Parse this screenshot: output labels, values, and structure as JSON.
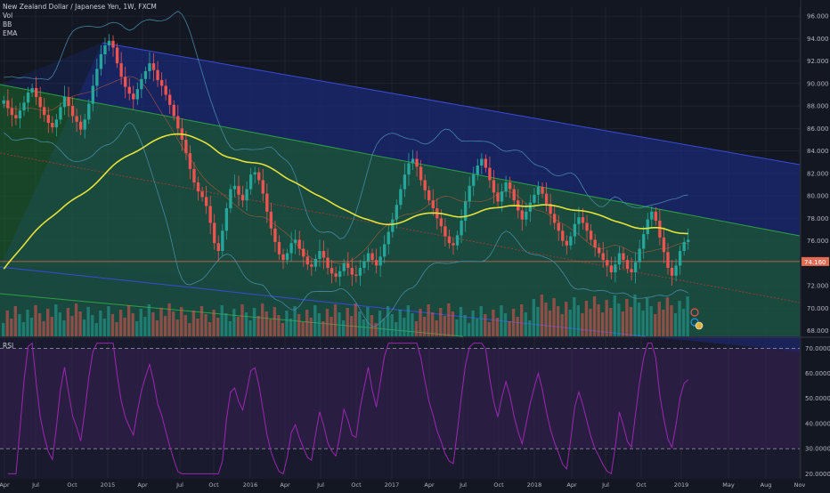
{
  "header": {
    "symbol_line": "New Zealand Dollar / Japanese Yen, 1W, FXCM",
    "indicators": [
      "Vol",
      "BB",
      "EMA"
    ]
  },
  "rsi_panel": {
    "label": "RSI"
  },
  "colors": {
    "background": "#131722",
    "up_candle": "#26a69a",
    "down_candle": "#ef5350",
    "ema": "#e5e33b",
    "bollinger": "#4a90b0",
    "channel_green": "#1e6b2c",
    "channel_blue": "#1c2a7a",
    "rsi_line": "#9c27b0",
    "rsi_band": "#2b1f45"
  },
  "price_axis": {
    "ticks": [
      "96.000",
      "94.000",
      "92.000",
      "90.000",
      "88.000",
      "86.000",
      "84.000",
      "82.000",
      "80.000",
      "78.000",
      "76.000",
      "74.000",
      "72.000",
      "70.000",
      "68.000"
    ],
    "current_price_label": "74.160"
  },
  "rsi_axis": {
    "ticks": [
      "70.0000",
      "60.0000",
      "50.0000",
      "40.0000",
      "30.0000",
      "20.0000"
    ]
  },
  "time_axis": {
    "ticks": [
      "Apr",
      "Jul",
      "Oct",
      "2015",
      "Apr",
      "Jul",
      "Oct",
      "2016",
      "Apr",
      "Jul",
      "Oct",
      "2017",
      "Apr",
      "Jul",
      "Oct",
      "2018",
      "Apr",
      "Jul",
      "Oct",
      "2019",
      "May",
      "Aug",
      "Nov"
    ]
  },
  "chart_data": {
    "type": "candlestick",
    "price_range": [
      67.5,
      96.8
    ],
    "rsi_range": [
      18,
      74
    ],
    "rsi_levels": [
      70,
      30
    ],
    "current_price": 74.16,
    "close_series_approx": [
      88.5,
      87.8,
      87.2,
      86.9,
      87.6,
      88.3,
      89.2,
      89.6,
      88.8,
      87.9,
      87.2,
      86.5,
      86.1,
      86.8,
      87.9,
      88.8,
      88.0,
      87.1,
      86.6,
      85.9,
      86.8,
      88.2,
      89.8,
      91.3,
      92.6,
      93.4,
      93.8,
      93.2,
      91.8,
      90.6,
      89.7,
      89.1,
      88.6,
      89.5,
      90.4,
      91.1,
      91.8,
      91.2,
      90.3,
      89.8,
      89.0,
      88.1,
      87.1,
      86.0,
      85.0,
      83.8,
      82.4,
      81.2,
      80.4,
      79.9,
      79.1,
      77.6,
      75.8,
      75.1,
      76.9,
      78.9,
      80.6,
      80.9,
      80.1,
      79.6,
      80.6,
      81.9,
      82.1,
      81.4,
      80.2,
      78.6,
      77.1,
      75.9,
      74.8,
      74.3,
      74.9,
      75.8,
      76.1,
      75.3,
      74.6,
      73.9,
      73.7,
      74.4,
      75.1,
      74.5,
      73.6,
      73.1,
      72.8,
      73.3,
      74.0,
      73.6,
      73.0,
      72.9,
      73.6,
      74.2,
      74.9,
      74.3,
      73.8,
      74.6,
      75.7,
      76.8,
      77.9,
      79.2,
      80.6,
      81.9,
      82.9,
      83.3,
      82.6,
      81.4,
      80.5,
      79.6,
      78.9,
      78.0,
      77.3,
      76.4,
      75.8,
      75.6,
      76.5,
      77.8,
      79.5,
      80.9,
      81.9,
      82.7,
      83.3,
      82.5,
      81.4,
      80.3,
      79.5,
      80.4,
      81.2,
      80.6,
      79.6,
      78.7,
      77.9,
      78.6,
      79.4,
      80.1,
      80.8,
      80.2,
      79.3,
      78.4,
      77.6,
      76.9,
      76.0,
      75.6,
      76.4,
      77.5,
      78.1,
      77.6,
      76.9,
      76.1,
      75.4,
      74.9,
      74.3,
      73.8,
      73.2,
      73.9,
      74.9,
      74.3,
      73.5,
      73.2,
      74.1,
      75.3,
      76.6,
      77.9,
      78.6,
      77.8,
      76.3,
      75.0,
      73.6,
      72.9,
      73.8,
      75.1,
      75.9,
      76.1
    ]
  }
}
